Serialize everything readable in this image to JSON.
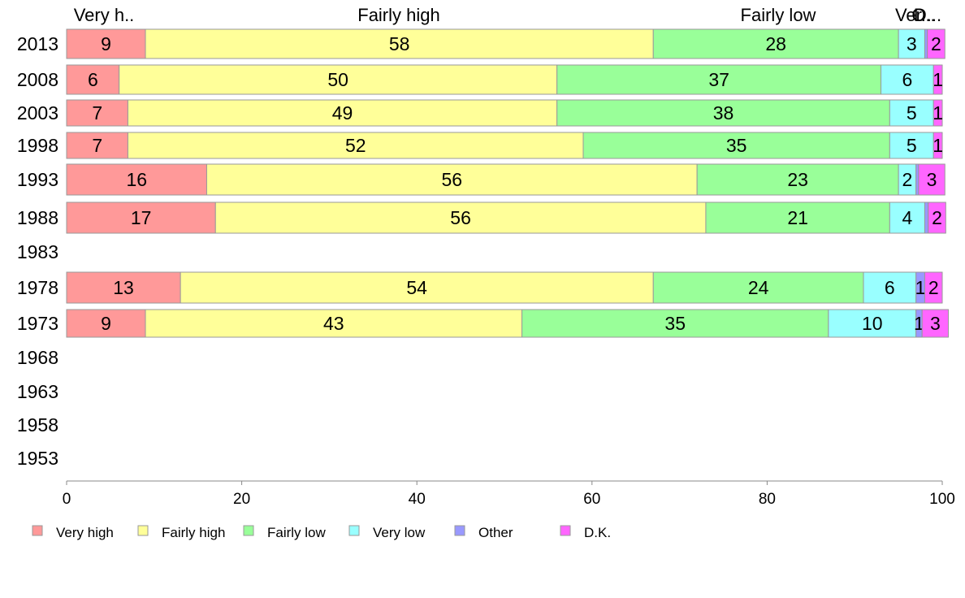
{
  "chart_data": {
    "type": "bar",
    "orientation": "horizontal",
    "stacked": true,
    "top_labels": [
      "Very h..",
      "Fairly high",
      "Fairly low",
      "Ver..",
      "O..",
      "D..."
    ],
    "categories": [
      "2013",
      "2008",
      "2003",
      "1998",
      "1993",
      "1988",
      "1983",
      "1978",
      "1973",
      "1968",
      "1963",
      "1958",
      "1953"
    ],
    "series": [
      {
        "name": "Very high",
        "color": "#ff9999",
        "values": [
          9,
          6,
          7,
          7,
          16,
          17,
          null,
          13,
          9,
          null,
          null,
          null,
          null
        ],
        "labels": [
          "9",
          "6",
          "7",
          "7",
          "16",
          "17",
          "",
          "13",
          "9",
          "",
          "",
          "",
          ""
        ]
      },
      {
        "name": "Fairly high",
        "color": "#ffff99",
        "values": [
          58,
          50,
          49,
          52,
          56,
          56,
          null,
          54,
          43,
          null,
          null,
          null,
          null
        ],
        "labels": [
          "58",
          "50",
          "49",
          "52",
          "56",
          "56",
          "",
          "54",
          "43",
          "",
          "",
          "",
          ""
        ]
      },
      {
        "name": "Fairly low",
        "color": "#99ff99",
        "values": [
          28,
          37,
          38,
          35,
          23,
          21,
          null,
          24,
          35,
          null,
          null,
          null,
          null
        ],
        "labels": [
          "28",
          "37",
          "38",
          "35",
          "23",
          "21",
          "",
          "24",
          "35",
          "",
          "",
          "",
          ""
        ]
      },
      {
        "name": "Very low",
        "color": "#99ffff",
        "values": [
          3,
          6,
          5,
          5,
          2,
          4,
          null,
          6,
          10,
          null,
          null,
          null,
          null
        ],
        "labels": [
          "3",
          "6",
          "5",
          "5",
          "2",
          "4",
          "",
          "6",
          "10",
          "",
          "",
          "",
          ""
        ]
      },
      {
        "name": "Other",
        "color": "#9999ff",
        "values": [
          0.3,
          0,
          0,
          0,
          0.3,
          0.4,
          null,
          1,
          0.7,
          null,
          null,
          null,
          null
        ],
        "labels": [
          "",
          "",
          "",
          "",
          "",
          "",
          "",
          "1",
          "1",
          "",
          "",
          "",
          ""
        ]
      },
      {
        "name": "D.K.",
        "color": "#ff66ff",
        "values": [
          2,
          1,
          1,
          1,
          3,
          2,
          null,
          2,
          3,
          null,
          null,
          null,
          null
        ],
        "labels": [
          "2",
          "1",
          "1",
          "1",
          "3",
          "2",
          "",
          "2",
          "3",
          "",
          "",
          "",
          ""
        ]
      }
    ],
    "xlim": [
      0,
      100
    ],
    "xticks": [
      "0",
      "20",
      "40",
      "60",
      "80",
      "100"
    ],
    "grid": false,
    "legend": "bottom-left"
  }
}
